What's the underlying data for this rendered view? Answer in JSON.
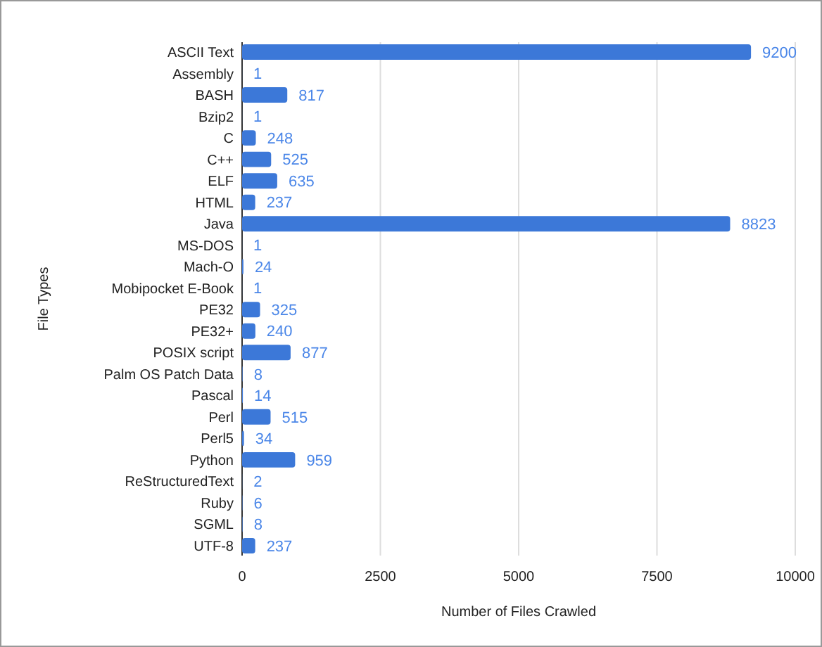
{
  "chart_data": {
    "type": "bar",
    "orientation": "horizontal",
    "xlabel": "Number of Files Crawled",
    "ylabel": "File Types",
    "categories": [
      "ASCII Text",
      "Assembly",
      "BASH",
      "Bzip2",
      "C",
      "C++",
      "ELF",
      "HTML",
      "Java",
      "MS-DOS",
      "Mach-O",
      "Mobipocket E-Book",
      "PE32",
      "PE32+",
      "POSIX script",
      "Palm OS Patch Data",
      "Pascal",
      "Perl",
      "Perl5",
      "Python",
      "ReStructuredText",
      "Ruby",
      "SGML",
      "UTF-8"
    ],
    "values": [
      9200,
      1,
      817,
      1,
      248,
      525,
      635,
      237,
      8823,
      1,
      24,
      1,
      325,
      240,
      877,
      8,
      14,
      515,
      34,
      959,
      2,
      6,
      8,
      237
    ],
    "color": "#3c78d8",
    "xlim": [
      0,
      10000
    ],
    "xticks": [
      0,
      2500,
      5000,
      7500,
      10000
    ],
    "grid": "x",
    "data_labels": true
  }
}
